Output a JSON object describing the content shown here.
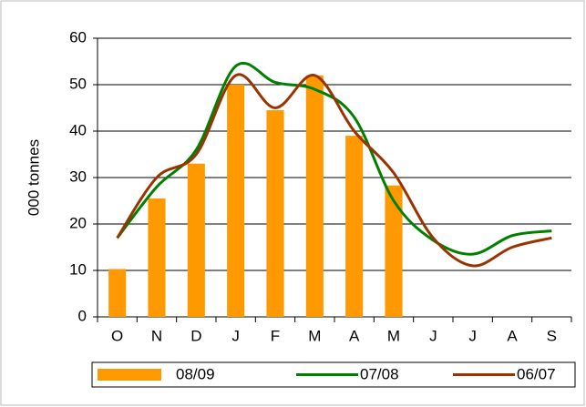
{
  "chart_data": {
    "type": "bar_line",
    "y_label": "000 tonnes",
    "categories": [
      "O",
      "N",
      "D",
      "J",
      "F",
      "M",
      "A",
      "M",
      "J",
      "J",
      "A",
      "S"
    ],
    "series": [
      {
        "name": "08/09",
        "type": "bar",
        "color": "#ff9900",
        "values": [
          10.3,
          25.5,
          33,
          50,
          44.5,
          52,
          39,
          28.3,
          null,
          null,
          null,
          null
        ]
      },
      {
        "name": "07/08",
        "type": "line",
        "color": "#008000",
        "values": [
          17,
          28,
          36,
          54,
          50.5,
          49,
          43,
          25,
          16.5,
          13.5,
          17.5,
          18.5
        ]
      },
      {
        "name": "06/07",
        "type": "line",
        "color": "#993300",
        "values": [
          17,
          30,
          35,
          52,
          45,
          52,
          40,
          31,
          17,
          11,
          15,
          17
        ]
      }
    ],
    "ylim": [
      0,
      60
    ],
    "yticks": [
      0,
      10,
      20,
      30,
      40,
      50,
      60
    ],
    "grid": true,
    "legend": "bottom"
  }
}
